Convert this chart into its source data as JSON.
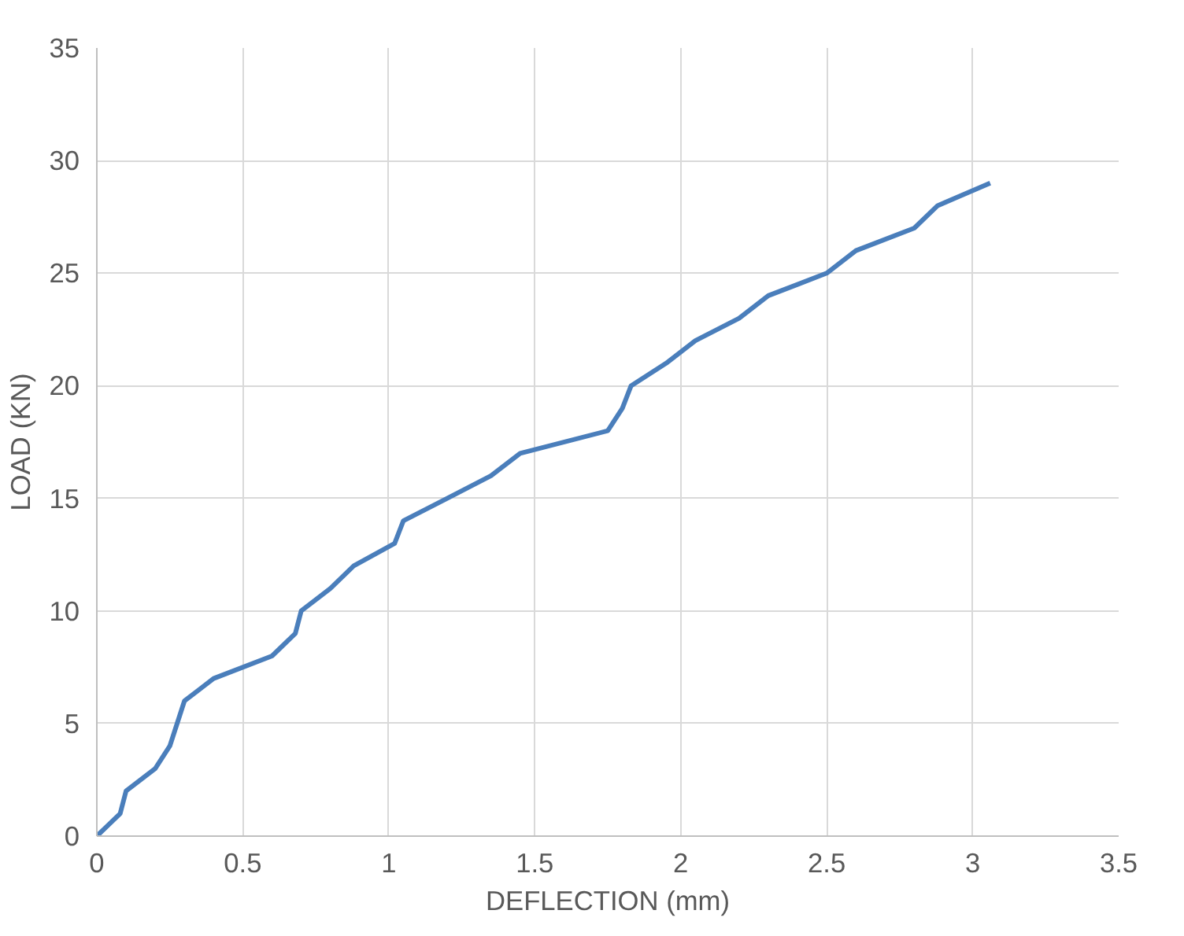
{
  "chart_data": {
    "type": "line",
    "xlabel": "DEFLECTION (mm)",
    "ylabel": "LOAD (KN)",
    "x": [
      0,
      0.08,
      0.1,
      0.2,
      0.25,
      0.3,
      0.4,
      0.6,
      0.68,
      0.7,
      0.8,
      0.88,
      1.02,
      1.05,
      1.2,
      1.35,
      1.45,
      1.75,
      1.8,
      1.83,
      1.95,
      2.05,
      2.2,
      2.3,
      2.5,
      2.6,
      2.8,
      2.88,
      3.06
    ],
    "series": [
      {
        "color": "#4a7ebb",
        "values": [
          0,
          1,
          2,
          3,
          4,
          6,
          7,
          8,
          9,
          10,
          11,
          12,
          13,
          14,
          15,
          16,
          17,
          18,
          19,
          20,
          21,
          22,
          23,
          24,
          25,
          26,
          27,
          28,
          29
        ]
      }
    ],
    "xlim": [
      0,
      3.5
    ],
    "ylim": [
      0,
      35
    ],
    "xticks": [
      0,
      0.5,
      1,
      1.5,
      2,
      2.5,
      3,
      3.5
    ],
    "yticks": [
      0,
      5,
      10,
      15,
      20,
      25,
      30,
      35
    ],
    "grid": true,
    "marker": "none",
    "line_style": "solid"
  }
}
